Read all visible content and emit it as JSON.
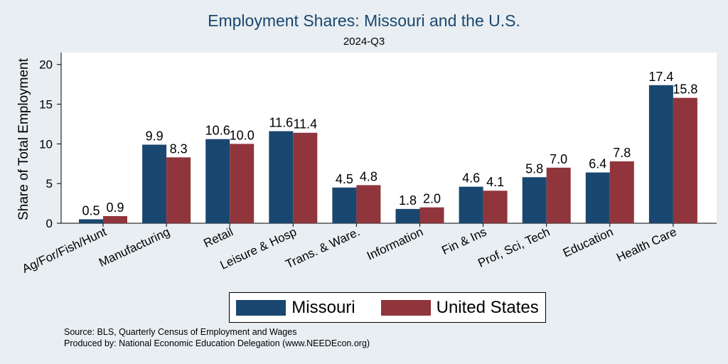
{
  "chart_data": {
    "type": "bar",
    "title": "Employment Shares: Missouri and the U.S.",
    "subtitle": "2024-Q3",
    "ylabel": "Share of Total Employment",
    "ylim": [
      0,
      21.5
    ],
    "yticks": [
      "0",
      "5",
      "10",
      "15",
      "20"
    ],
    "categories": [
      "Ag/For/Fish/Hunt",
      "Manufacturing",
      "Retail",
      "Leisure & Hosp",
      "Trans. & Ware.",
      "Information",
      "Fin & Ins",
      "Prof, Sci, Tech",
      "Education",
      "Health Care"
    ],
    "series": [
      {
        "name": "Missouri",
        "color": "#1a476f",
        "values": [
          0.5,
          9.9,
          10.6,
          11.6,
          4.5,
          1.8,
          4.6,
          5.8,
          6.4,
          17.4
        ],
        "labels": [
          "0.5",
          "9.9",
          "10.6",
          "11.6",
          "4.5",
          "1.8",
          "4.6",
          "5.8",
          "6.4",
          "17.4"
        ]
      },
      {
        "name": "United States",
        "color": "#90353b",
        "values": [
          0.9,
          8.3,
          10.0,
          11.4,
          4.8,
          2.0,
          4.1,
          7.0,
          7.8,
          15.8
        ],
        "labels": [
          "0.9",
          "8.3",
          "10.0",
          "11.4",
          "4.8",
          "2.0",
          "4.1",
          "7.0",
          "7.8",
          "15.8"
        ]
      }
    ],
    "grid": false,
    "legend_position": "bottom"
  },
  "notes": {
    "source": "Source: BLS, Quarterly Census of Employment and Wages",
    "produced": "Produced by: National Economic Education Delegation (www.NEEDEcon.org)"
  }
}
